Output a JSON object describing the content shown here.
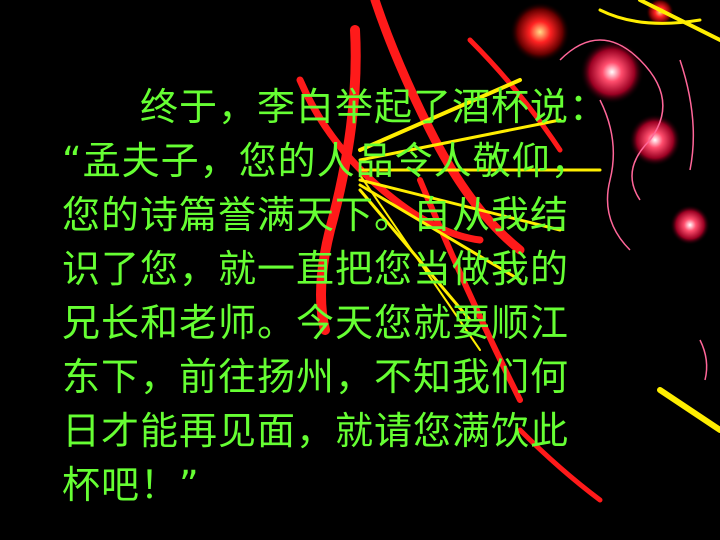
{
  "slide": {
    "paragraph_lines": [
      "　　终于，李白举起了酒杯说：",
      "“孟夫子，您的人品令人敬仰，",
      "您的诗篇誉满天下。自从我结",
      "识了您，就一直把您当做我的",
      "兄长和老师。今天您就要顺江",
      "东下，前往扬州，不知我们何",
      "日才能再见面，就请您满饮此",
      "杯吧！”"
    ]
  },
  "colors": {
    "background": "#000000",
    "text": "#66ff33",
    "decor_red": "#ff1a1a",
    "decor_yellow": "#ffee00",
    "decor_pink": "#ff6699"
  }
}
